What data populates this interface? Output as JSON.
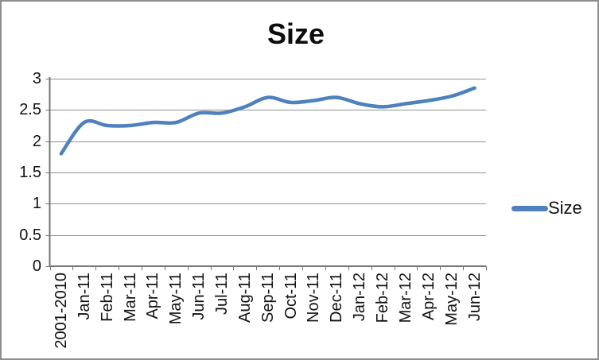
{
  "window": {
    "background": "#ffffff",
    "frame_color": "#8d8d8d"
  },
  "chart_data": {
    "type": "line",
    "title": "Size",
    "categories": [
      "2001-2010",
      "Jan-11",
      "Feb-11",
      "Mar-11",
      "Apr-11",
      "May-11",
      "Jun-11",
      "Jul-11",
      "Aug-11",
      "Sep-11",
      "Oct-11",
      "Nov-11",
      "Dec-11",
      "Jan-12",
      "Feb-12",
      "Mar-12",
      "Apr-12",
      "May-12",
      "Jun-12"
    ],
    "series": [
      {
        "name": "Size",
        "color": "#4f81bd",
        "values": [
          1.8,
          2.3,
          2.25,
          2.25,
          2.3,
          2.3,
          2.45,
          2.45,
          2.55,
          2.7,
          2.62,
          2.65,
          2.7,
          2.6,
          2.55,
          2.6,
          2.65,
          2.72,
          2.85
        ]
      }
    ],
    "xlabel": "",
    "ylabel": "",
    "ylim": [
      0,
      3
    ],
    "ytick_labels": [
      "0",
      "0.5",
      "1",
      "1.5",
      "2",
      "2.5",
      "3"
    ],
    "grid": "horizontal",
    "gridline_color": "#919191",
    "axis_color": "#767676",
    "legend_position": "right",
    "smoothed_line": true
  }
}
